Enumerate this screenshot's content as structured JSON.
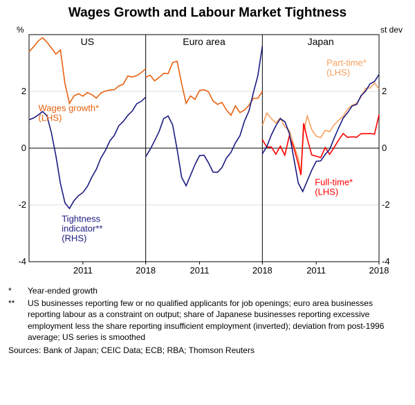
{
  "title": "Wages Growth and Labour Market Tightness",
  "left_unit": "%",
  "right_unit": "st dev",
  "y_min": -4,
  "y_max": 4,
  "y_ticks": [
    -4,
    -2,
    0,
    2
  ],
  "x_ticks": [
    "2011",
    "2018"
  ],
  "panels": [
    {
      "label": "US",
      "x_start": 2005,
      "x_end": 2018
    },
    {
      "label": "Euro area",
      "x_start": 2005,
      "x_end": 2018
    },
    {
      "label": "Japan",
      "x_start": 2005,
      "x_end": 2018
    }
  ],
  "colors": {
    "wages": "#e8610f",
    "tightness": "#1a1a80",
    "parttime": "#f4a060",
    "fulltime": "#ff0000",
    "grid": "#000000",
    "frame": "#000000",
    "bg": "#ffffff"
  },
  "line_width": 1.6,
  "annotations": {
    "us_wages": {
      "text": "Wages growth*\n(LHS)",
      "color": "#e8610f",
      "panel": 0,
      "px": 0.08,
      "py": 1.3
    },
    "us_tight": {
      "text": "Tightness\nindicator**\n(RHS)",
      "color": "#1a1a80",
      "panel": 0,
      "px": 0.28,
      "py": -2.6
    },
    "jp_part": {
      "text": "Part-time*\n(LHS)",
      "color": "#f4a060",
      "panel": 2,
      "px": 0.55,
      "py": 2.9
    },
    "jp_full": {
      "text": "Full-time*\n(LHS)",
      "color": "#ff0000",
      "panel": 2,
      "px": 0.45,
      "py": -1.3
    }
  },
  "series": {
    "us_wages": [
      [
        2005,
        3.4
      ],
      [
        2005.5,
        3.6
      ],
      [
        2006,
        3.8
      ],
      [
        2006.5,
        3.9
      ],
      [
        2007,
        3.7
      ],
      [
        2007.5,
        3.5
      ],
      [
        2008,
        3.3
      ],
      [
        2008.5,
        3.5
      ],
      [
        2009,
        2.3
      ],
      [
        2009.5,
        1.6
      ],
      [
        2010,
        1.8
      ],
      [
        2010.5,
        1.9
      ],
      [
        2011,
        1.8
      ],
      [
        2011.5,
        2.0
      ],
      [
        2012,
        1.9
      ],
      [
        2012.5,
        1.8
      ],
      [
        2013,
        1.9
      ],
      [
        2013.5,
        2.0
      ],
      [
        2014,
        2.0
      ],
      [
        2014.5,
        2.1
      ],
      [
        2015,
        2.2
      ],
      [
        2015.5,
        2.3
      ],
      [
        2016,
        2.5
      ],
      [
        2016.5,
        2.5
      ],
      [
        2017,
        2.5
      ],
      [
        2017.5,
        2.7
      ],
      [
        2018,
        2.8
      ]
    ],
    "us_tight": [
      [
        2005,
        1.0
      ],
      [
        2005.5,
        1.1
      ],
      [
        2006,
        1.2
      ],
      [
        2006.5,
        1.3
      ],
      [
        2007,
        1.1
      ],
      [
        2007.5,
        0.5
      ],
      [
        2008,
        -0.3
      ],
      [
        2008.5,
        -1.2
      ],
      [
        2009,
        -1.9
      ],
      [
        2009.5,
        -2.1
      ],
      [
        2010,
        -1.9
      ],
      [
        2010.5,
        -1.7
      ],
      [
        2011,
        -1.6
      ],
      [
        2011.5,
        -1.3
      ],
      [
        2012,
        -1.0
      ],
      [
        2012.5,
        -0.7
      ],
      [
        2013,
        -0.4
      ],
      [
        2013.5,
        -0.1
      ],
      [
        2014,
        0.2
      ],
      [
        2014.5,
        0.5
      ],
      [
        2015,
        0.8
      ],
      [
        2015.5,
        1.0
      ],
      [
        2016,
        1.1
      ],
      [
        2016.5,
        1.3
      ],
      [
        2017,
        1.5
      ],
      [
        2017.5,
        1.7
      ],
      [
        2018,
        1.8
      ]
    ],
    "eu_wages": [
      [
        2005,
        2.5
      ],
      [
        2005.5,
        2.6
      ],
      [
        2006,
        2.4
      ],
      [
        2006.5,
        2.5
      ],
      [
        2007,
        2.6
      ],
      [
        2007.5,
        2.6
      ],
      [
        2008,
        3.0
      ],
      [
        2008.5,
        3.1
      ],
      [
        2009,
        2.3
      ],
      [
        2009.5,
        1.6
      ],
      [
        2010,
        1.8
      ],
      [
        2010.5,
        1.7
      ],
      [
        2011,
        2.0
      ],
      [
        2011.5,
        2.1
      ],
      [
        2012,
        2.0
      ],
      [
        2012.5,
        1.7
      ],
      [
        2013,
        1.5
      ],
      [
        2013.5,
        1.6
      ],
      [
        2014,
        1.3
      ],
      [
        2014.5,
        1.2
      ],
      [
        2015,
        1.5
      ],
      [
        2015.5,
        1.3
      ],
      [
        2016,
        1.3
      ],
      [
        2016.5,
        1.5
      ],
      [
        2017,
        1.7
      ],
      [
        2017.5,
        1.8
      ],
      [
        2018,
        2.0
      ]
    ],
    "eu_tight": [
      [
        2005,
        -0.3
      ],
      [
        2005.5,
        0.0
      ],
      [
        2006,
        0.3
      ],
      [
        2006.5,
        0.6
      ],
      [
        2007,
        1.0
      ],
      [
        2007.5,
        1.1
      ],
      [
        2008,
        0.8
      ],
      [
        2008.5,
        0.0
      ],
      [
        2009,
        -1.0
      ],
      [
        2009.5,
        -1.3
      ],
      [
        2010,
        -1.0
      ],
      [
        2010.5,
        -0.6
      ],
      [
        2011,
        -0.3
      ],
      [
        2011.5,
        -0.2
      ],
      [
        2012,
        -0.5
      ],
      [
        2012.5,
        -0.8
      ],
      [
        2013,
        -0.9
      ],
      [
        2013.5,
        -0.7
      ],
      [
        2014,
        -0.4
      ],
      [
        2014.5,
        -0.1
      ],
      [
        2015,
        0.2
      ],
      [
        2015.5,
        0.5
      ],
      [
        2016,
        0.9
      ],
      [
        2016.5,
        1.3
      ],
      [
        2017,
        1.9
      ],
      [
        2017.5,
        2.6
      ],
      [
        2018,
        3.6
      ]
    ],
    "jp_part": [
      [
        2005,
        0.8
      ],
      [
        2005.5,
        1.3
      ],
      [
        2006,
        1.1
      ],
      [
        2006.5,
        0.9
      ],
      [
        2007,
        1.0
      ],
      [
        2007.5,
        0.7
      ],
      [
        2008,
        0.6
      ],
      [
        2008.5,
        0.2
      ],
      [
        2009,
        -0.3
      ],
      [
        2009.3,
        -0.8
      ],
      [
        2009.6,
        0.5
      ],
      [
        2010,
        1.1
      ],
      [
        2010.5,
        0.6
      ],
      [
        2011,
        0.5
      ],
      [
        2011.5,
        0.4
      ],
      [
        2012,
        0.7
      ],
      [
        2012.5,
        0.5
      ],
      [
        2013,
        0.8
      ],
      [
        2013.5,
        0.9
      ],
      [
        2014,
        1.2
      ],
      [
        2014.5,
        1.4
      ],
      [
        2015,
        1.6
      ],
      [
        2015.5,
        1.5
      ],
      [
        2016,
        1.8
      ],
      [
        2016.5,
        2.0
      ],
      [
        2017,
        2.2
      ],
      [
        2017.5,
        2.3
      ],
      [
        2018,
        2.2
      ]
    ],
    "jp_full": [
      [
        2005,
        0.3
      ],
      [
        2005.5,
        0.1
      ],
      [
        2006,
        0.1
      ],
      [
        2006.5,
        -0.2
      ],
      [
        2007,
        0.0
      ],
      [
        2007.5,
        -0.3
      ],
      [
        2008,
        0.4
      ],
      [
        2008.5,
        0.1
      ],
      [
        2009,
        -0.5
      ],
      [
        2009.3,
        -0.9
      ],
      [
        2009.6,
        0.8
      ],
      [
        2010,
        0.3
      ],
      [
        2010.5,
        -0.3
      ],
      [
        2011,
        -0.2
      ],
      [
        2011.5,
        -0.3
      ],
      [
        2012,
        0.1
      ],
      [
        2012.5,
        -0.3
      ],
      [
        2013,
        0.0
      ],
      [
        2013.5,
        0.2
      ],
      [
        2014,
        0.6
      ],
      [
        2014.5,
        0.4
      ],
      [
        2015,
        0.5
      ],
      [
        2015.5,
        0.3
      ],
      [
        2016,
        0.5
      ],
      [
        2016.5,
        0.4
      ],
      [
        2017,
        0.6
      ],
      [
        2017.5,
        0.5
      ],
      [
        2018,
        1.3
      ]
    ],
    "jp_tight": [
      [
        2005,
        -0.2
      ],
      [
        2005.5,
        0.1
      ],
      [
        2006,
        0.5
      ],
      [
        2006.5,
        0.8
      ],
      [
        2007,
        1.0
      ],
      [
        2007.5,
        0.9
      ],
      [
        2008,
        0.5
      ],
      [
        2008.5,
        -0.3
      ],
      [
        2009,
        -1.2
      ],
      [
        2009.5,
        -1.5
      ],
      [
        2010,
        -1.2
      ],
      [
        2010.5,
        -0.8
      ],
      [
        2011,
        -0.5
      ],
      [
        2011.5,
        -0.4
      ],
      [
        2012,
        -0.2
      ],
      [
        2012.5,
        0.0
      ],
      [
        2013,
        0.3
      ],
      [
        2013.5,
        0.7
      ],
      [
        2014,
        1.0
      ],
      [
        2014.5,
        1.3
      ],
      [
        2015,
        1.5
      ],
      [
        2015.5,
        1.6
      ],
      [
        2016,
        1.8
      ],
      [
        2016.5,
        2.0
      ],
      [
        2017,
        2.2
      ],
      [
        2017.5,
        2.4
      ],
      [
        2018,
        2.6
      ]
    ]
  },
  "footnotes": [
    {
      "mark": "*",
      "text": "Year-ended growth"
    },
    {
      "mark": "**",
      "text": "US businesses reporting few or no qualified applicants for job openings; euro area businesses reporting labour as a constraint on output; share of Japanese businesses reporting excessive employment less the share reporting insufficient employment (inverted); deviation from post-1996 average; US series is smoothed"
    }
  ],
  "sources": "Sources: Bank of Japan; CEIC Data; ECB; RBA; Thomson Reuters"
}
